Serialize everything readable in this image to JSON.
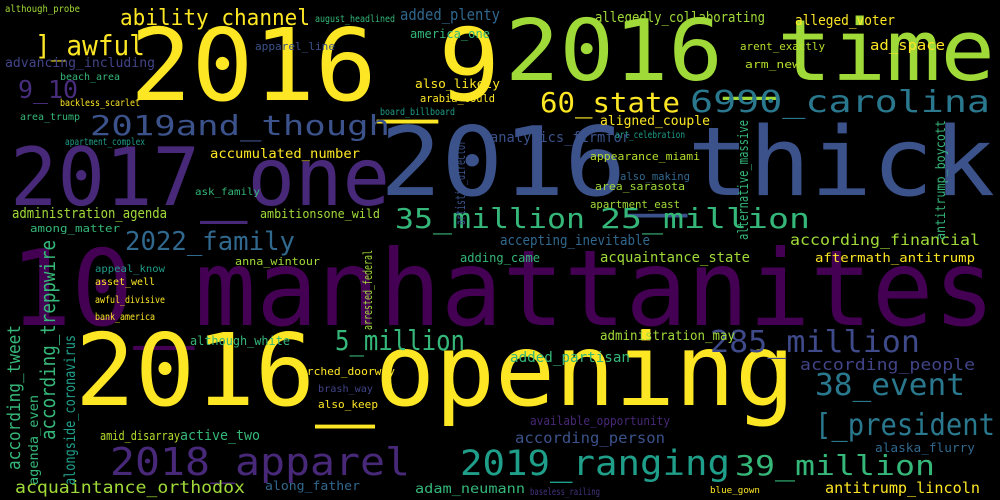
{
  "words": [
    "2016_9",
    "2016_time",
    "2016_thick",
    "2017_one",
    "10_manhattanites",
    "2016_opening",
    "ability_channel",
    "]_awful",
    "60_state",
    "6990_carolina",
    "2019and_though",
    "35_million",
    "25_million",
    "2022_family",
    "5_million",
    "285_million",
    "38_event",
    "[_president",
    "2018_apparel",
    "2019_ranging",
    "39_million",
    "9_10",
    "added_plenty",
    "allegedly_collaborating",
    "alleged_voter",
    "ad_space",
    "advancing_including",
    "america_one",
    "apparel_line",
    "also_likely",
    "arabia_could",
    "area_trump",
    "backless_scarlet",
    "aligned_couple",
    "analytics_firmfor",
    "art_celebration",
    "accumulated_number",
    "apartment_complex",
    "appearance_miami",
    "also_making",
    "area_sarasota",
    "apartment_east",
    "ask_family",
    "administration_agenda",
    "among_matter",
    "ambitionsone_wild",
    "accepting_inevitable",
    "according_financial",
    "adding_came",
    "acquaintance_state",
    "aftermath_antitrump",
    "anna_wintour",
    "appeal_know",
    "asset_well",
    "awful_divisive",
    "bank_america",
    "although_white",
    "administration_may",
    "added_partisan",
    "according_people",
    "arched_doorway",
    "also_keep",
    "brash_way",
    "active_two",
    "amid_disarray",
    "according_person",
    "available_opportunity",
    "alaska_flurry",
    "acquaintance_orthodox",
    "along_father",
    "adam_neumann",
    "antitrump_lincoln",
    "although_probe",
    "august_headlined",
    "arent_exactly",
    "arm_new",
    "beach_area",
    "board_billboard",
    "blue_gown",
    "baseless_railing",
    "according_tweet",
    "according_treppwire",
    "alongside_coronavirus",
    "agenda_even",
    "alternative_massive",
    "antitrump_boycott",
    "artistic_director",
    "arrested_federal"
  ]
}
